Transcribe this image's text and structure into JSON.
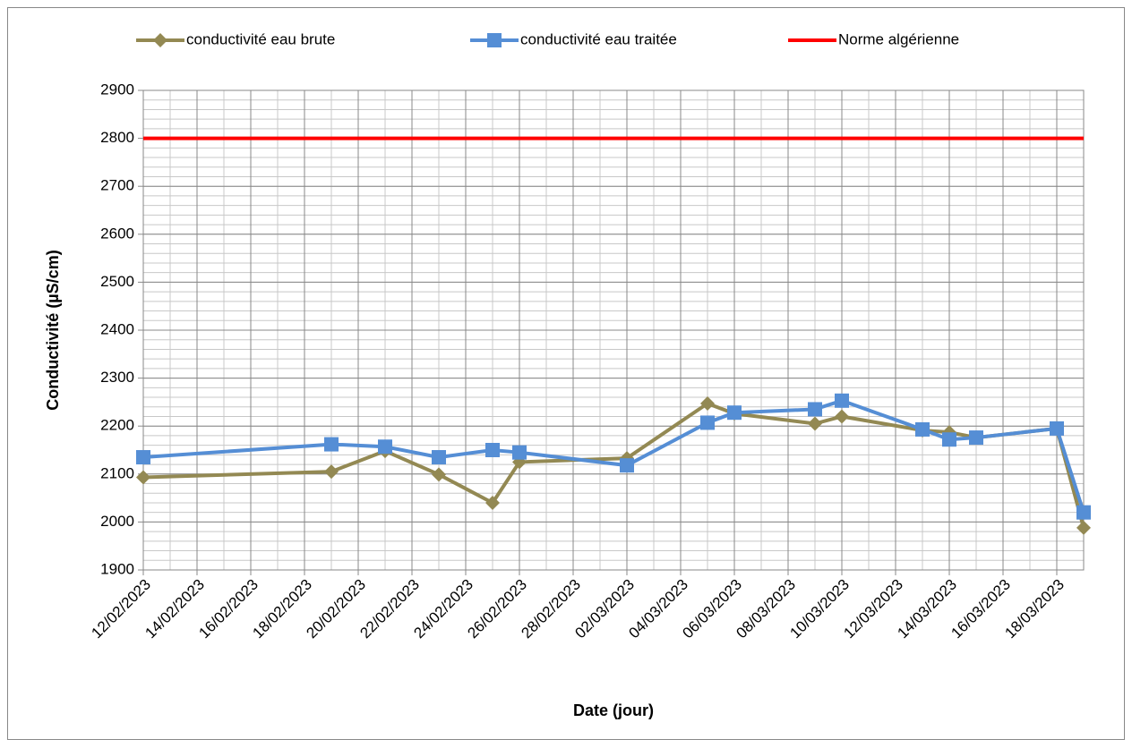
{
  "chart_data": {
    "type": "line",
    "x_label": "Date (jour)",
    "y_label": "Conductivité (µS/cm)",
    "xlim": [
      "12/02/2023",
      "19/03/2023"
    ],
    "xticks": [
      "12/02/2023",
      "14/02/2023",
      "16/02/2023",
      "18/02/2023",
      "20/02/2023",
      "22/02/2023",
      "24/02/2023",
      "26/02/2023",
      "28/02/2023",
      "02/03/2023",
      "04/03/2023",
      "06/03/2023",
      "08/03/2023",
      "10/03/2023",
      "12/03/2023",
      "14/03/2023",
      "16/03/2023",
      "18/03/2023"
    ],
    "ylim": [
      1900,
      2900
    ],
    "yticks": [
      1900,
      2000,
      2100,
      2200,
      2300,
      2400,
      2500,
      2600,
      2700,
      2800,
      2900
    ],
    "grid": true,
    "x_minor_days": 1,
    "y_minor_step": 20,
    "legend": "top",
    "series": [
      {
        "name": "conductivité eau brute",
        "color": "#938953",
        "marker": "diamond",
        "x": [
          "12/02/2023",
          "19/02/2023",
          "21/02/2023",
          "23/02/2023",
          "25/02/2023",
          "26/02/2023",
          "02/03/2023",
          "05/03/2023",
          "06/03/2023",
          "09/03/2023",
          "10/03/2023",
          "13/03/2023",
          "14/03/2023",
          "15/03/2023",
          "18/03/2023",
          "19/03/2023"
        ],
        "values": [
          2093,
          2105,
          2148,
          2099,
          2040,
          2125,
          2133,
          2247,
          2226,
          2205,
          2220,
          2191,
          2187,
          2176,
          2195,
          1988
        ]
      },
      {
        "name": "conductivité eau traitée",
        "color": "#558ED5",
        "marker": "square",
        "x": [
          "12/02/2023",
          "19/02/2023",
          "21/02/2023",
          "23/02/2023",
          "25/02/2023",
          "26/02/2023",
          "02/03/2023",
          "05/03/2023",
          "06/03/2023",
          "09/03/2023",
          "10/03/2023",
          "13/03/2023",
          "14/03/2023",
          "15/03/2023",
          "18/03/2023",
          "19/03/2023"
        ],
        "values": [
          2135,
          2162,
          2157,
          2135,
          2150,
          2145,
          2118,
          2207,
          2228,
          2235,
          2253,
          2193,
          2172,
          2176,
          2195,
          2020
        ]
      },
      {
        "name": "Norme algérienne",
        "color": "#FF0000",
        "marker": "none",
        "x": [
          "12/02/2023",
          "19/03/2023"
        ],
        "values": [
          2800,
          2800
        ]
      }
    ]
  }
}
